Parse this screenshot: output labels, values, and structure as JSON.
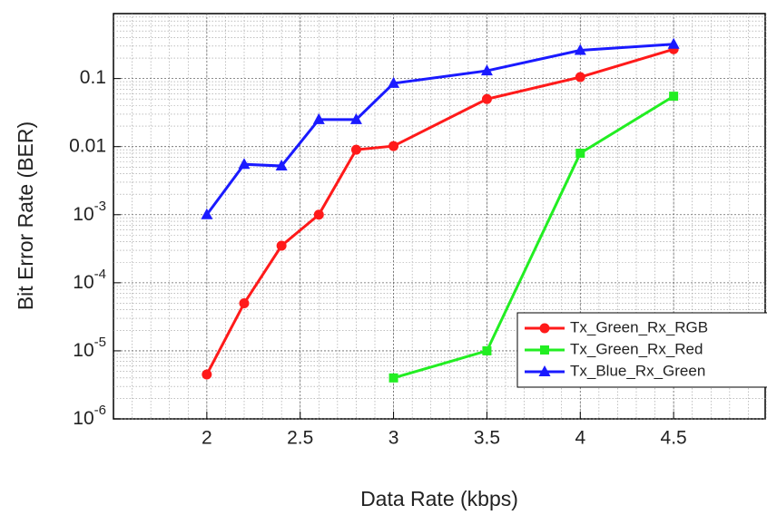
{
  "chart_data": {
    "type": "line",
    "x_label": "Data Rate (kbps)",
    "y_label": "Bit Error Rate (BER)",
    "log_y": true,
    "grid": true,
    "minor_grid": true,
    "legend_position": "lower right",
    "xlim": [
      1.5,
      5
    ],
    "ylim": [
      1e-06,
      0.9
    ],
    "xticks": [
      2,
      2.5,
      3,
      3.5,
      4,
      4.5
    ],
    "yticks": [
      {
        "value": 0.1,
        "label": "0.1"
      },
      {
        "value": 0.01,
        "label": "0.01"
      },
      {
        "value": 0.001,
        "label": "10-3"
      },
      {
        "value": 0.0001,
        "label": "10-4"
      },
      {
        "value": 1e-05,
        "label": "10-5"
      },
      {
        "value": 1e-06,
        "label": "10-6"
      }
    ],
    "series": [
      {
        "name": "Tx_Green_Rx_RGB",
        "color": "#ff1a1a",
        "marker": "circle",
        "x": [
          2,
          2.2,
          2.4,
          2.6,
          2.8,
          3,
          3.5,
          4,
          4.5
        ],
        "values": [
          4.5e-06,
          5e-05,
          0.00035,
          0.001,
          0.009,
          0.0102,
          0.05,
          0.105,
          0.27
        ]
      },
      {
        "name": "Tx_Green_Rx_Red",
        "color": "#22ee22",
        "marker": "square",
        "x": [
          3,
          3.5,
          4,
          4.5
        ],
        "values": [
          4e-06,
          1e-05,
          0.008,
          0.055
        ]
      },
      {
        "name": "Tx_Blue_Rx_Green",
        "color": "#1a1aff",
        "marker": "triangle",
        "x": [
          2,
          2.2,
          2.4,
          2.6,
          2.8,
          3,
          3.5,
          4,
          4.5
        ],
        "values": [
          0.001,
          0.0055,
          0.0052,
          0.025,
          0.025,
          0.085,
          0.13,
          0.26,
          0.32
        ]
      }
    ]
  }
}
